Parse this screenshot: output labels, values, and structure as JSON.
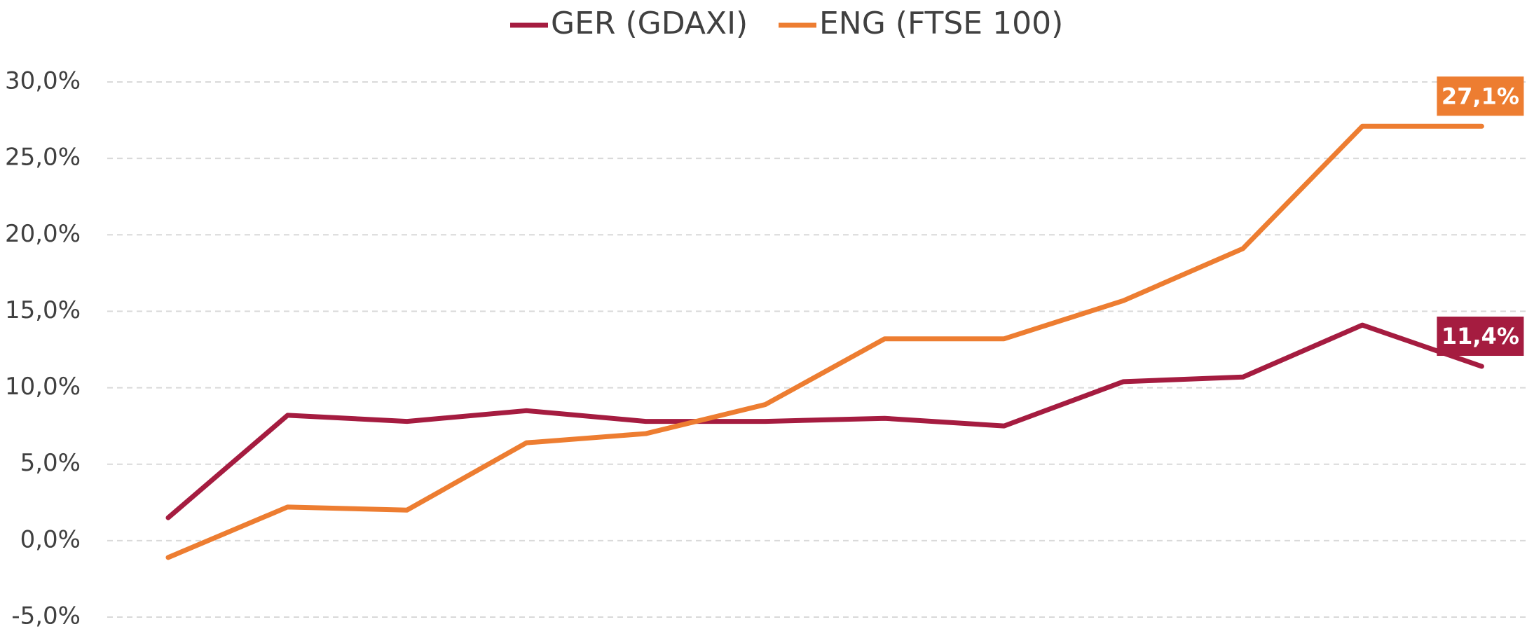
{
  "chart_data": {
    "type": "line",
    "categories": [
      null,
      null,
      null,
      null,
      null,
      null,
      null,
      null,
      null,
      null,
      null,
      null
    ],
    "series": [
      {
        "name": "GER (GDAXI)",
        "color": "#a51c40",
        "values": [
          1.5,
          8.2,
          7.8,
          8.5,
          7.8,
          7.8,
          8.0,
          7.5,
          10.4,
          10.7,
          14.1,
          11.4
        ],
        "value_labels": [
          null,
          null,
          null,
          null,
          null,
          null,
          null,
          null,
          null,
          null,
          null,
          "11,4%"
        ]
      },
      {
        "name": "ENG (FTSE 100)",
        "color": "#ed7d31",
        "values": [
          -1.1,
          2.2,
          2.0,
          6.4,
          7.0,
          8.9,
          13.2,
          13.2,
          15.7,
          19.1,
          27.1,
          27.1
        ],
        "value_labels": [
          null,
          null,
          null,
          null,
          null,
          null,
          null,
          null,
          null,
          null,
          null,
          "27,1%"
        ]
      }
    ],
    "ylim": [
      -5,
      30
    ],
    "yticks": [
      {
        "value": -5,
        "label": "-5,0%"
      },
      {
        "value": 0,
        "label": "0,0%"
      },
      {
        "value": 5,
        "label": "5,0%"
      },
      {
        "value": 10,
        "label": "10,0%"
      },
      {
        "value": 15,
        "label": "15,0%"
      },
      {
        "value": 20,
        "label": "20,0%"
      },
      {
        "value": 25,
        "label": "25,0%"
      },
      {
        "value": 30,
        "label": "30,0%"
      }
    ],
    "grid": true,
    "legend": "top"
  }
}
